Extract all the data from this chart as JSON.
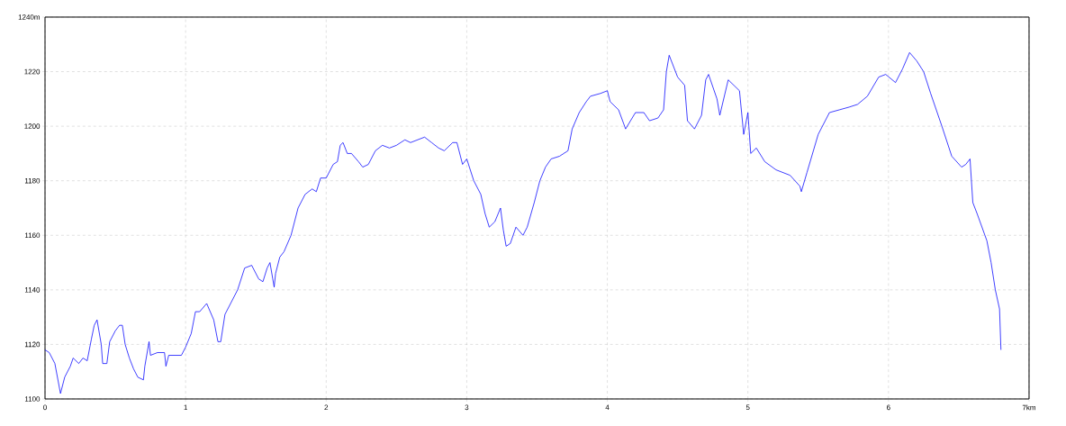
{
  "chart_data": {
    "type": "line",
    "x": [
      0,
      0.03,
      0.07,
      0.11,
      0.14,
      0.18,
      0.2,
      0.24,
      0.27,
      0.3,
      0.33,
      0.35,
      0.37,
      0.4,
      0.41,
      0.44,
      0.46,
      0.5,
      0.53,
      0.55,
      0.57,
      0.6,
      0.63,
      0.66,
      0.7,
      0.71,
      0.74,
      0.75,
      0.8,
      0.85,
      0.86,
      0.88,
      0.92,
      0.97,
      1.0,
      1.04,
      1.07,
      1.1,
      1.15,
      1.2,
      1.23,
      1.25,
      1.28,
      1.32,
      1.37,
      1.42,
      1.47,
      1.52,
      1.55,
      1.58,
      1.6,
      1.62,
      1.63,
      1.64,
      1.67,
      1.7,
      1.75,
      1.8,
      1.85,
      1.9,
      1.93,
      1.96,
      2.0,
      2.05,
      2.08,
      2.1,
      2.12,
      2.15,
      2.18,
      2.23,
      2.26,
      2.3,
      2.35,
      2.4,
      2.45,
      2.5,
      2.56,
      2.6,
      2.65,
      2.7,
      2.75,
      2.8,
      2.84,
      2.9,
      2.93,
      2.97,
      3.0,
      3.05,
      3.1,
      3.13,
      3.16,
      3.2,
      3.24,
      3.26,
      3.28,
      3.31,
      3.35,
      3.4,
      3.43,
      3.48,
      3.52,
      3.56,
      3.6,
      3.66,
      3.72,
      3.75,
      3.8,
      3.85,
      3.88,
      3.95,
      4.0,
      4.02,
      4.08,
      4.13,
      4.2,
      4.26,
      4.3,
      4.36,
      4.4,
      4.42,
      4.44,
      4.5,
      4.55,
      4.57,
      4.62,
      4.67,
      4.7,
      4.72,
      4.78,
      4.8,
      4.86,
      4.9,
      4.94,
      4.97,
      5.0,
      5.02,
      5.06,
      5.12,
      5.2,
      5.3,
      5.37,
      5.38,
      5.42,
      5.5,
      5.58,
      5.65,
      5.72,
      5.78,
      5.85,
      5.93,
      5.98,
      6.05,
      6.1,
      6.15,
      6.2,
      6.25,
      6.3,
      6.38,
      6.45,
      6.52,
      6.55,
      6.58,
      6.6,
      6.63,
      6.7,
      6.73,
      6.76,
      6.79,
      6.8
    ],
    "series": [
      {
        "color": "#0000ff",
        "values": [
          1118,
          1117,
          1113,
          1102,
          1108,
          1112,
          1115,
          1113,
          1115,
          1114,
          1122,
          1127,
          1129,
          1120,
          1113,
          1113,
          1121,
          1125,
          1127,
          1127,
          1120,
          1115,
          1111,
          1108,
          1107,
          1112,
          1121,
          1116,
          1117,
          1117,
          1112,
          1116,
          1116,
          1116,
          1119,
          1124,
          1132,
          1132,
          1135,
          1129,
          1121,
          1121,
          1131,
          1135,
          1140,
          1148,
          1149,
          1144,
          1143,
          1148,
          1150,
          1144,
          1141,
          1146,
          1152,
          1154,
          1160,
          1170,
          1175,
          1177,
          1176,
          1181,
          1181,
          1186,
          1187,
          1193,
          1194,
          1190,
          1190,
          1187,
          1185,
          1186,
          1191,
          1193,
          1192,
          1193,
          1195,
          1194,
          1195,
          1196,
          1194,
          1192,
          1191,
          1194,
          1194,
          1186,
          1188,
          1180,
          1175,
          1168,
          1163,
          1165,
          1170,
          1162,
          1156,
          1157,
          1163,
          1160,
          1163,
          1172,
          1180,
          1185,
          1188,
          1189,
          1191,
          1199,
          1205,
          1209,
          1211,
          1212,
          1213,
          1209,
          1206,
          1199,
          1205,
          1205,
          1202,
          1203,
          1206,
          1220,
          1226,
          1218,
          1215,
          1202,
          1199,
          1204,
          1217,
          1219,
          1210,
          1204,
          1217,
          1215,
          1213,
          1197,
          1205,
          1190,
          1192,
          1187,
          1184,
          1182,
          1178,
          1176,
          1183,
          1197,
          1205,
          1206,
          1207,
          1208,
          1211,
          1218,
          1219,
          1216,
          1221,
          1227,
          1224,
          1220,
          1212,
          1200,
          1189,
          1185,
          1186,
          1188,
          1172,
          1168,
          1158,
          1150,
          1140,
          1133,
          1118
        ]
      }
    ],
    "xlim": [
      0,
      7
    ],
    "ylim": [
      1100,
      1240
    ],
    "xticks": [
      0,
      1,
      2,
      3,
      4,
      5,
      6,
      {
        "value": 7,
        "label": "7km"
      }
    ],
    "yticks": [
      1100,
      1120,
      1140,
      1160,
      1180,
      1200,
      1220,
      {
        "value": 1240,
        "label": "1240m"
      }
    ],
    "grid": true
  }
}
